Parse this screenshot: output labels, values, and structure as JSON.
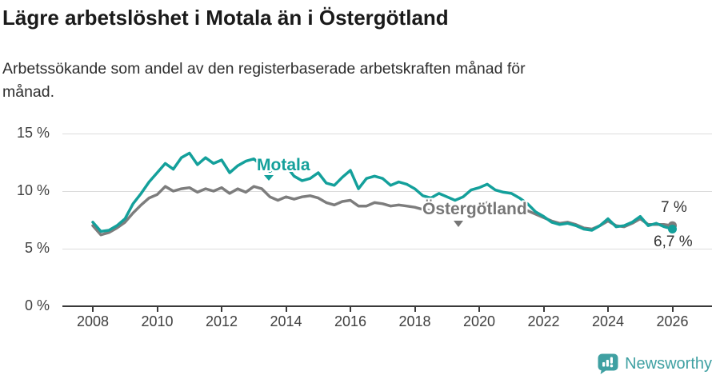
{
  "header": {
    "title": "Lägre arbetslöshet i Motala än i Östergötland",
    "subtitle": "Arbetssökande som andel av den registerbaserade arbetskraften månad för månad."
  },
  "chart_data": {
    "type": "line",
    "title": "Lägre arbetslöshet i Motala än i Östergötland",
    "subtitle": "Arbetssökande som andel av den registerbaserade arbetskraften månad för månad.",
    "x_start": 2008.0,
    "x_step": 0.25,
    "x_ticks": [
      "2008",
      "2010",
      "2012",
      "2014",
      "2016",
      "2018",
      "2020",
      "2022",
      "2024",
      "2026"
    ],
    "y_ticks": [
      {
        "label": "0 %",
        "value": 0
      },
      {
        "label": "5 %",
        "value": 5
      },
      {
        "label": "10 %",
        "value": 10
      },
      {
        "label": "15 %",
        "value": 15
      }
    ],
    "ylim": [
      0,
      15
    ],
    "grid": "horizontal",
    "legend": "inline-labels",
    "series": [
      {
        "name": "Motala",
        "color": "#14a09b",
        "end_label": "6,7 %",
        "final_value": 6.7,
        "values": [
          7.3,
          6.5,
          6.6,
          7.0,
          7.6,
          8.9,
          9.8,
          10.8,
          11.6,
          12.4,
          11.9,
          12.9,
          13.3,
          12.3,
          12.9,
          12.4,
          12.7,
          11.6,
          12.2,
          12.6,
          12.8,
          12.2,
          11.7,
          12.2,
          12.2,
          11.3,
          10.9,
          11.1,
          11.6,
          10.7,
          10.5,
          11.2,
          11.8,
          10.2,
          11.1,
          11.3,
          11.1,
          10.5,
          10.8,
          10.6,
          10.2,
          9.6,
          9.4,
          9.8,
          9.5,
          9.2,
          9.5,
          10.1,
          10.3,
          10.6,
          10.1,
          9.9,
          9.8,
          9.4,
          8.9,
          8.2,
          7.8,
          7.3,
          7.1,
          7.2,
          7.0,
          6.7,
          6.6,
          7.0,
          7.6,
          6.9,
          7.0,
          7.3,
          7.8,
          7.0,
          7.2,
          6.9,
          6.7
        ]
      },
      {
        "name": "Östergötland",
        "color": "#7d7d7d",
        "end_label": "7 %",
        "final_value": 7.0,
        "values": [
          7.0,
          6.2,
          6.4,
          6.8,
          7.3,
          8.1,
          8.8,
          9.4,
          9.7,
          10.4,
          10.0,
          10.2,
          10.3,
          9.9,
          10.2,
          10.0,
          10.3,
          9.8,
          10.2,
          9.9,
          10.4,
          10.2,
          9.5,
          9.2,
          9.5,
          9.3,
          9.5,
          9.6,
          9.4,
          9.0,
          8.8,
          9.1,
          9.2,
          8.7,
          8.7,
          9.0,
          8.9,
          8.7,
          8.8,
          8.7,
          8.6,
          8.4,
          8.3,
          8.4,
          8.4,
          8.3,
          8.4,
          8.6,
          8.8,
          9.0,
          8.8,
          8.6,
          8.7,
          8.5,
          8.3,
          8.0,
          7.7,
          7.4,
          7.2,
          7.3,
          7.1,
          6.8,
          6.7,
          7.0,
          7.4,
          7.0,
          6.9,
          7.2,
          7.6,
          7.1,
          7.1,
          7.1,
          7.0
        ]
      }
    ]
  },
  "footer": {
    "brand": "Newsworthy"
  }
}
